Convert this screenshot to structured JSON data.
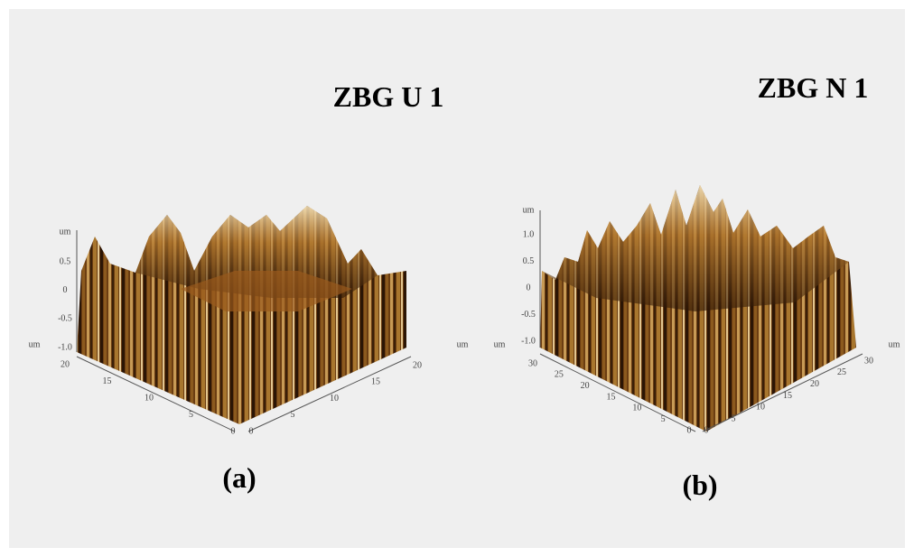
{
  "panels": [
    {
      "title": "ZBG U 1",
      "caption": "(a)",
      "z_unit": "um",
      "z_ticks": [
        "0.5",
        "0",
        "-0.5",
        "-1.0"
      ],
      "left_unit": "um",
      "right_unit": "um",
      "left_ticks": [
        "20",
        "15",
        "10",
        "5",
        "0"
      ],
      "right_ticks": [
        "0",
        "5",
        "10",
        "15",
        "20"
      ]
    },
    {
      "title": "ZBG N 1",
      "caption": "(b)",
      "z_unit": "um",
      "z_ticks": [
        "1.0",
        "0.5",
        "0",
        "-0.5",
        "-1.0"
      ],
      "left_unit": "um",
      "right_unit": "um",
      "left_ticks": [
        "30",
        "25",
        "20",
        "15",
        "10",
        "5",
        "0"
      ],
      "right_ticks": [
        "0",
        "5",
        "10",
        "15",
        "20",
        "25",
        "30"
      ]
    }
  ]
}
